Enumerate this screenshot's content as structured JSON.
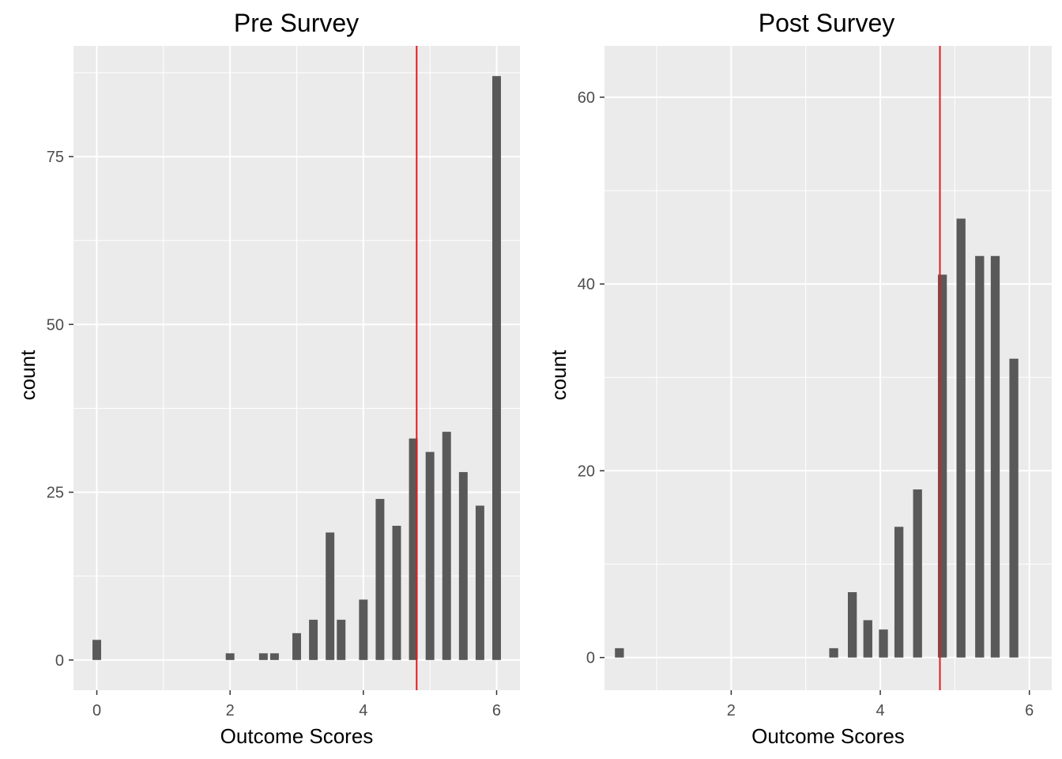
{
  "chart_data": [
    {
      "type": "bar",
      "title": "Pre Survey",
      "xlabel": "Outcome Scores",
      "ylabel": "count",
      "xlim": [
        -0.35,
        6.35
      ],
      "ylim": [
        -4.5,
        91.5
      ],
      "x_ticks": [
        0,
        2,
        4,
        6
      ],
      "x_tick_labels": [
        "0",
        "2",
        "4",
        "6"
      ],
      "y_ticks": [
        0,
        25,
        50,
        75
      ],
      "y_tick_labels": [
        "0",
        "25",
        "50",
        "75"
      ],
      "x": [
        0,
        2,
        2.5,
        2.667,
        3,
        3.25,
        3.5,
        3.667,
        4,
        4.25,
        4.5,
        4.75,
        5,
        5.25,
        5.5,
        5.75,
        6
      ],
      "values": [
        3,
        1,
        1,
        1,
        4,
        6,
        19,
        6,
        9,
        24,
        20,
        33,
        31,
        34,
        28,
        23,
        87
      ],
      "bar_width": 0.13,
      "reference_line": {
        "x": 4.8,
        "color": "#e41a1c"
      },
      "grid": true,
      "panel_background": "#ebebeb",
      "bar_color": "#595959"
    },
    {
      "type": "bar",
      "title": "Post Survey",
      "xlabel": "Outcome Scores",
      "ylabel": "count",
      "xlim": [
        0.3,
        6.3
      ],
      "ylim": [
        -3.5,
        65.5
      ],
      "x_ticks": [
        2,
        4,
        6
      ],
      "x_tick_labels": [
        "2",
        "4",
        "6"
      ],
      "y_ticks": [
        0,
        20,
        40,
        60
      ],
      "y_tick_labels": [
        "0",
        "20",
        "40",
        "60"
      ],
      "x": [
        0.5,
        3.375,
        3.625,
        3.833,
        4.042,
        4.25,
        4.5,
        4.833,
        5.083,
        5.333,
        5.542,
        5.792
      ],
      "values": [
        1,
        1,
        7,
        4,
        3,
        14,
        18,
        41,
        47,
        43,
        43,
        32
      ],
      "bar_width": 0.12,
      "reference_line": {
        "x": 4.8,
        "color": "#e41a1c"
      },
      "grid": true,
      "panel_background": "#ebebeb",
      "bar_color": "#595959"
    }
  ]
}
